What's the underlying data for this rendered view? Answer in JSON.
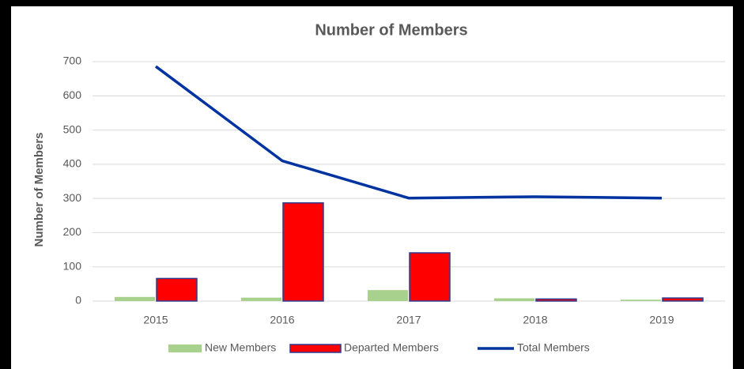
{
  "chart_data": {
    "type": "bar",
    "title": "Number of Members",
    "y_label": "Number of Members",
    "categories": [
      "2015",
      "2016",
      "2017",
      "2018",
      "2019"
    ],
    "series": [
      {
        "name": "New Members",
        "type": "bar",
        "color": "#a9d18e",
        "values": [
          12,
          10,
          32,
          8,
          4
        ]
      },
      {
        "name": "Departed Members",
        "type": "bar",
        "color": "#ff0000",
        "edgecolor": "#2f3b8f",
        "values": [
          66,
          287,
          141,
          6,
          9
        ]
      },
      {
        "name": "Total Members",
        "type": "line",
        "color": "#0033a0",
        "values": [
          686,
          410,
          301,
          305,
          301
        ]
      }
    ],
    "ylim": [
      0,
      700
    ],
    "yticks": [
      0,
      100,
      200,
      300,
      400,
      500,
      600,
      700
    ],
    "grid": true,
    "legend": "bottom"
  }
}
